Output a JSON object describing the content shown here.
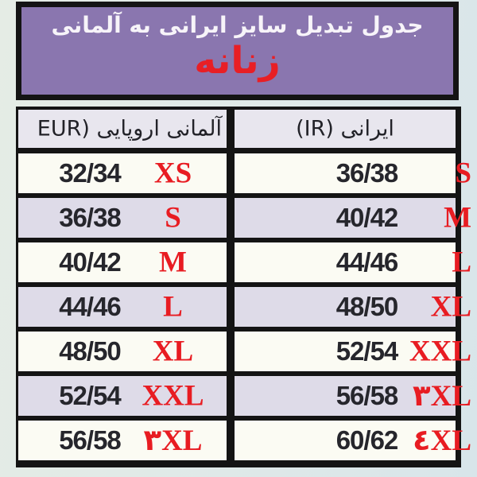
{
  "banner": {
    "title": "جدول تبدیل سایز ایرانی به آلمانی",
    "category": "زنانه",
    "background": "#8a76af",
    "title_color": "#f7f4f9",
    "category_color": "#e81f25"
  },
  "colors": {
    "page_background": "#dfe9e8",
    "border_black": "#141414",
    "row_white": "#fbfbf3",
    "row_lavender": "#dedbe8",
    "header_cell_bg": "#e8e6ee",
    "number_text": "#26262c",
    "accent_red": "#e81c22"
  },
  "chart_data": {
    "type": "table",
    "title": "جدول تبدیل سایز ایرانی به آلمانی",
    "subtitle": "زنانه",
    "columns": [
      {
        "id": "eur",
        "label": "آلمانی اروپایی (EUR"
      },
      {
        "id": "ir",
        "label": "ایرانی (IR)"
      }
    ],
    "rows": [
      {
        "eur_size": "32/34",
        "eur_tag": "XS",
        "ir_size": "36/38",
        "ir_tag": "S"
      },
      {
        "eur_size": "36/38",
        "eur_tag": "S",
        "ir_size": "40/42",
        "ir_tag": "M"
      },
      {
        "eur_size": "40/42",
        "eur_tag": "M",
        "ir_size": "44/46",
        "ir_tag": "L"
      },
      {
        "eur_size": "44/46",
        "eur_tag": "L",
        "ir_size": "48/50",
        "ir_tag": "XL"
      },
      {
        "eur_size": "48/50",
        "eur_tag": "XL",
        "ir_size": "52/54",
        "ir_tag": "XXL"
      },
      {
        "eur_size": "52/54",
        "eur_tag": "XXL",
        "ir_size": "56/58",
        "ir_tag": "۳XL"
      },
      {
        "eur_size": "56/58",
        "eur_tag": "۳XL",
        "ir_size": "60/62",
        "ir_tag": "٤XL"
      }
    ]
  }
}
